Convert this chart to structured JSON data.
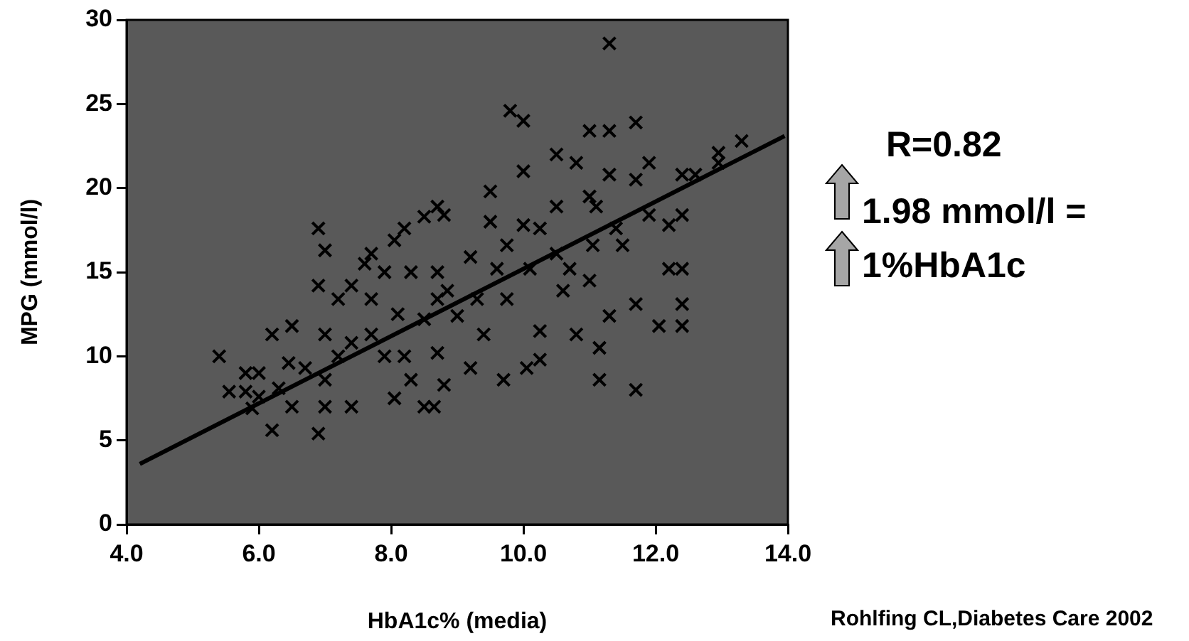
{
  "chart_data": {
    "type": "scatter",
    "xlabel": "HbA1c% (media)",
    "ylabel": "MPG (mmol/l)",
    "xlim": [
      4,
      14
    ],
    "xticks": [
      {
        "value": 4,
        "label": "4.0"
      },
      {
        "value": 6,
        "label": "6.0"
      },
      {
        "value": 8,
        "label": "8.0"
      },
      {
        "value": 10,
        "label": "10.0"
      },
      {
        "value": 12,
        "label": "12.0"
      },
      {
        "value": 14,
        "label": "14.0"
      }
    ],
    "ylim": [
      0,
      30
    ],
    "yticks": [
      0,
      5,
      10,
      15,
      20,
      25,
      30
    ],
    "grid": false,
    "legend": false,
    "marker": "cross",
    "annotations": [
      "R=0.82",
      "1.98 mmol/l =",
      "1%HbA1c",
      "Rohlfing CL,Diabetes Care 2002"
    ],
    "series": [
      {
        "type": "scatter",
        "color": "#000000",
        "x": [
          5.4,
          5.55,
          5.8,
          5.8,
          5.9,
          6.0,
          6.2,
          6.2,
          6.3,
          6.5,
          6.5,
          6.7,
          6.9,
          6.9,
          6.9,
          7.0,
          7.0,
          7.2,
          7.2,
          7.4,
          7.4,
          7.6,
          7.7,
          7.7,
          7.9,
          7.9,
          8.05,
          8.05,
          8.1,
          8.2,
          8.3,
          8.3,
          8.5,
          8.5,
          8.7,
          8.7,
          8.7,
          6.45,
          7.0,
          7.4,
          7.7,
          8.2,
          8.5,
          8.7,
          7.0,
          6.0,
          8.65,
          8.8,
          8.8,
          9.2,
          9.2,
          9.4,
          9.5,
          9.7,
          9.5,
          9.8,
          10.0,
          10.0,
          10.0,
          10.25,
          10.25,
          10.05,
          10.25,
          10.5,
          10.5,
          10.6,
          10.8,
          10.8,
          11.0,
          11.0,
          11.0,
          11.15,
          11.15,
          11.3,
          11.3,
          11.3,
          11.3,
          11.5,
          11.7,
          11.7,
          11.7,
          11.7,
          11.9,
          11.9,
          12.05,
          12.2,
          12.2,
          12.4,
          12.4,
          12.4,
          12.4,
          12.4,
          12.6,
          12.95,
          12.95,
          13.3,
          8.85,
          9.0,
          9.3,
          9.6,
          9.75,
          9.75,
          10.1,
          10.5,
          10.7,
          11.05,
          11.1,
          11.4
        ],
        "values": [
          10.0,
          7.9,
          9.0,
          7.9,
          6.9,
          9.0,
          5.6,
          11.3,
          8.1,
          7.0,
          11.8,
          9.3,
          17.6,
          5.4,
          14.2,
          16.3,
          7.0,
          13.4,
          10.0,
          7.0,
          14.2,
          15.5,
          16.1,
          11.3,
          15.0,
          10.0,
          7.5,
          16.9,
          12.5,
          17.6,
          15.0,
          8.6,
          7.0,
          18.3,
          18.9,
          10.2,
          13.4,
          9.6,
          11.3,
          10.8,
          13.4,
          10.0,
          12.2,
          15.0,
          8.6,
          7.6,
          7.0,
          8.3,
          18.4,
          9.3,
          15.9,
          11.3,
          18.0,
          8.6,
          19.8,
          24.6,
          24.0,
          21.0,
          17.8,
          17.6,
          9.8,
          9.3,
          11.5,
          22.0,
          18.9,
          13.9,
          21.5,
          11.3,
          23.4,
          19.5,
          14.5,
          10.5,
          8.6,
          28.6,
          23.4,
          20.8,
          12.4,
          16.6,
          23.9,
          20.5,
          13.1,
          8.0,
          21.5,
          18.4,
          11.8,
          17.8,
          15.2,
          11.8,
          13.1,
          18.4,
          15.2,
          20.8,
          20.8,
          22.1,
          21.5,
          22.8,
          13.9,
          12.4,
          13.4,
          15.2,
          13.4,
          16.6,
          15.2,
          16.1,
          15.2,
          16.6,
          18.9,
          17.6
        ]
      },
      {
        "type": "line",
        "color": "#000000",
        "marker": "none",
        "line_style": "solid",
        "x": [
          4.2,
          13.95
        ],
        "values": [
          3.6,
          23.1
        ]
      }
    ]
  }
}
